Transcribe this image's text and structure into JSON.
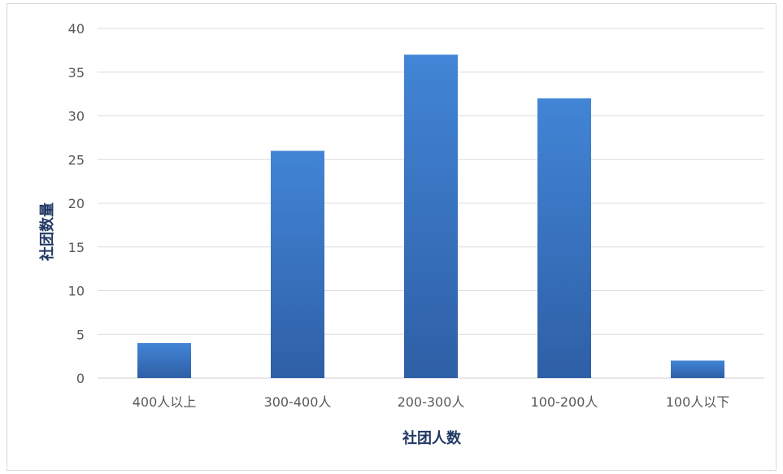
{
  "chart_data": {
    "type": "bar",
    "categories": [
      "400人以上",
      "300-400人",
      "200-300人",
      "100-200人",
      "100人以下"
    ],
    "series": [
      {
        "values": [
          4,
          26,
          37,
          32,
          2
        ]
      }
    ],
    "title": "",
    "xlabel": "社团人数",
    "ylabel": "社团数量",
    "ylim": [
      0,
      40
    ],
    "yticks": [
      "0",
      "5",
      "10",
      "15",
      "20",
      "25",
      "30",
      "35",
      "40"
    ],
    "grid": true,
    "legend": "none",
    "colors": {
      "bar_top": "#4285d6",
      "bar_bottom": "#2e5fa6",
      "axis_title": "#203864",
      "tick": "#595959",
      "grid": "#dcdcdc"
    }
  }
}
